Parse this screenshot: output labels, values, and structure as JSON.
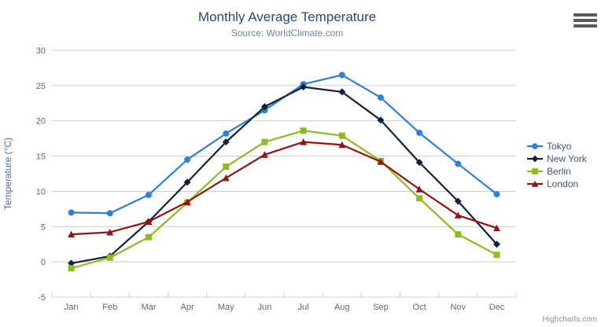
{
  "header": {
    "title": "Monthly Average Temperature",
    "subtitle": "Source: WorldClimate.com"
  },
  "chart_data": {
    "type": "line",
    "categories": [
      "Jan",
      "Feb",
      "Mar",
      "Apr",
      "May",
      "Jun",
      "Jul",
      "Aug",
      "Sep",
      "Oct",
      "Nov",
      "Dec"
    ],
    "series": [
      {
        "name": "Tokyo",
        "color": "#2f7ed8",
        "marker": "circle",
        "values": [
          7.0,
          6.9,
          9.5,
          14.5,
          18.2,
          21.5,
          25.2,
          26.5,
          23.3,
          18.3,
          13.9,
          9.6
        ]
      },
      {
        "name": "New York",
        "color": "#0d233a",
        "marker": "diamond",
        "values": [
          -0.2,
          0.8,
          5.7,
          11.3,
          17.0,
          22.0,
          24.8,
          24.1,
          20.1,
          14.1,
          8.6,
          2.5
        ]
      },
      {
        "name": "Berlin",
        "color": "#8bbc21",
        "marker": "square",
        "values": [
          -0.9,
          0.6,
          3.5,
          8.4,
          13.5,
          17.0,
          18.6,
          17.9,
          14.3,
          9.0,
          3.9,
          1.0
        ]
      },
      {
        "name": "London",
        "color": "#991111",
        "marker": "triangle",
        "values": [
          3.9,
          4.2,
          5.7,
          8.5,
          11.9,
          15.2,
          17.0,
          16.6,
          14.2,
          10.3,
          6.6,
          4.8
        ]
      }
    ],
    "title": "Monthly Average Temperature",
    "subtitle": "Source: WorldClimate.com",
    "xlabel": "",
    "ylabel": "Temperature (°C)",
    "ylim": [
      -5,
      30
    ],
    "ytick_interval": 5,
    "grid": true,
    "legend_position": "right"
  },
  "colors": {
    "title": "#274b6d",
    "subtitle": "#6d869f",
    "grid_line": "#cccccc",
    "axis_line": "#c0d0e0",
    "tick_label": "#666666",
    "yaxis_title": "#4572a7",
    "credits": "#909090"
  },
  "icons": {
    "context_menu": "hamburger-menu-icon"
  },
  "credits": {
    "label": "Highcharts.com"
  }
}
